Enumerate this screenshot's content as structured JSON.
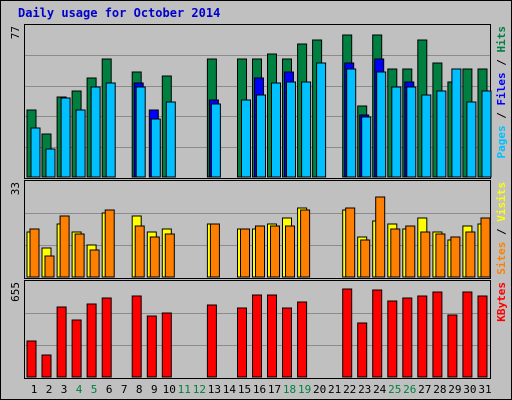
{
  "chart_data": {
    "type": "bar",
    "title": "Daily usage for October 2014",
    "categories": [
      "1",
      "2",
      "3",
      "4",
      "5",
      "6",
      "7",
      "8",
      "9",
      "10",
      "11",
      "12",
      "13",
      "14",
      "15",
      "16",
      "17",
      "18",
      "19",
      "20",
      "21",
      "22",
      "23",
      "24",
      "25",
      "26",
      "27",
      "28",
      "29",
      "30",
      "31"
    ],
    "weekend_days": [
      "4",
      "5",
      "11",
      "12",
      "18",
      "19",
      "25",
      "26"
    ],
    "colors": {
      "background": "#c0c0c0",
      "frame": "#000000",
      "title_text": "#0000cc",
      "hits": "#008040",
      "files": "#0000ff",
      "pages": "#00c0ff",
      "visits": "#ffff00",
      "sites": "#ff8000",
      "kbytes": "#ff0000",
      "weekend_label": "#008040",
      "weekday_label": "#000000"
    },
    "panels": [
      {
        "ymax_label": "77",
        "ymax": 77,
        "legend": [
          {
            "text": "Pages",
            "color": "#00c0ff"
          },
          {
            "text": " / ",
            "color": "#000000"
          },
          {
            "text": "Files",
            "color": "#0000ff"
          },
          {
            "text": " / ",
            "color": "#000000"
          },
          {
            "text": "Hits",
            "color": "#008040"
          }
        ],
        "series": [
          {
            "name": "Hits",
            "color": "#008040",
            "values": [
              36,
              23,
              43,
              46,
              53,
              63,
              0,
              56,
              0,
              54,
              0,
              0,
              63,
              0,
              63,
              63,
              66,
              63,
              71,
              73,
              0,
              76,
              38,
              76,
              58,
              58,
              73,
              61,
              51,
              58,
              58
            ]
          },
          {
            "name": "Files",
            "color": "#0000ff",
            "values": [
              0,
              0,
              0,
              0,
              0,
              0,
              0,
              50,
              36,
              0,
              0,
              0,
              41,
              0,
              0,
              53,
              0,
              56,
              0,
              0,
              0,
              61,
              33,
              63,
              0,
              51,
              0,
              0,
              0,
              0,
              0
            ]
          },
          {
            "name": "Pages",
            "color": "#00c0ff",
            "values": [
              26,
              15,
              42,
              36,
              48,
              50,
              0,
              48,
              31,
              40,
              0,
              0,
              39,
              0,
              41,
              44,
              50,
              51,
              51,
              61,
              0,
              58,
              32,
              56,
              48,
              48,
              44,
              46,
              58,
              40,
              46
            ]
          }
        ]
      },
      {
        "ymax_label": "33",
        "ymax": 33,
        "legend": [
          {
            "text": "Sites",
            "color": "#ff8000"
          },
          {
            "text": " / ",
            "color": "#000000"
          },
          {
            "text": "Visits",
            "color": "#ffff00"
          }
        ],
        "series": [
          {
            "name": "Visits",
            "color": "#ffff00",
            "values": [
              17,
              11,
              20,
              17,
              12,
              24,
              0,
              23,
              17,
              18,
              0,
              0,
              20,
              0,
              18,
              18,
              20,
              22,
              26,
              0,
              0,
              25,
              15,
              21,
              20,
              18,
              22,
              17,
              14,
              19,
              20
            ]
          },
          {
            "name": "Sites",
            "color": "#ff8000",
            "values": [
              18,
              8,
              23,
              16,
              10,
              25,
              0,
              19,
              15,
              16,
              0,
              0,
              20,
              0,
              18,
              19,
              19,
              19,
              25,
              0,
              0,
              26,
              14,
              30,
              18,
              19,
              17,
              16,
              15,
              17,
              22
            ]
          }
        ]
      },
      {
        "ymax_label": "655",
        "ymax": 655,
        "legend": [
          {
            "text": "KBytes",
            "color": "#ff0000"
          }
        ],
        "series": [
          {
            "name": "KBytes",
            "color": "#ff0000",
            "values": [
              265,
              165,
              520,
              425,
              540,
              590,
              0,
              600,
              455,
              475,
              0,
              0,
              535,
              0,
              510,
              610,
              610,
              510,
              555,
              0,
              0,
              655,
              400,
              650,
              565,
              590,
              605,
              635,
              460,
              630,
              605
            ]
          }
        ]
      }
    ]
  }
}
